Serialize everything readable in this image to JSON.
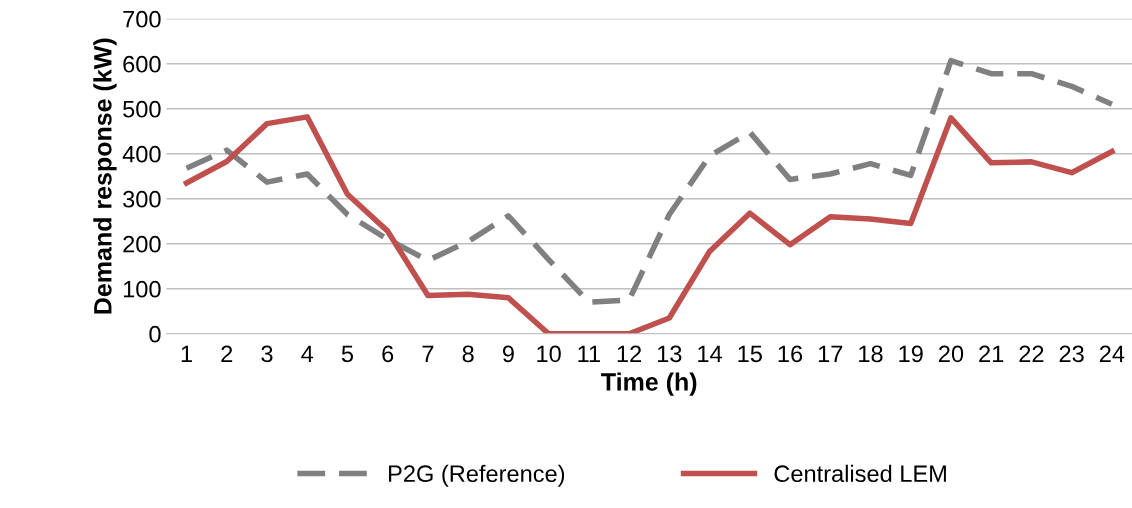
{
  "chart_data": {
    "type": "line",
    "xlabel": "Time (h)",
    "ylabel": "Demand response (kW)",
    "categories": [
      "1",
      "2",
      "3",
      "4",
      "5",
      "6",
      "7",
      "8",
      "9",
      "10",
      "11",
      "12",
      "13",
      "14",
      "15",
      "16",
      "17",
      "18",
      "19",
      "20",
      "21",
      "22",
      "23",
      "24"
    ],
    "series": [
      {
        "name": "P2G (Reference)",
        "color": "#808080",
        "line_style": "dashed",
        "values": [
          368,
          408,
          337,
          355,
          265,
          210,
          163,
          205,
          262,
          165,
          70,
          75,
          265,
          395,
          448,
          343,
          355,
          378,
          352,
          607,
          578,
          578,
          550,
          510
        ]
      },
      {
        "name": "Centralised LEM",
        "color": "#c0504d",
        "line_style": "solid",
        "values": [
          335,
          383,
          467,
          482,
          310,
          228,
          85,
          88,
          80,
          0,
          0,
          0,
          35,
          183,
          268,
          198,
          260,
          255,
          245,
          480,
          380,
          382,
          358,
          405
        ]
      }
    ],
    "ylim": [
      0,
      700
    ],
    "yticks": [
      0,
      100,
      200,
      300,
      400,
      500,
      600,
      700
    ],
    "grid": "y",
    "legend": "bottom",
    "marker": "none"
  }
}
